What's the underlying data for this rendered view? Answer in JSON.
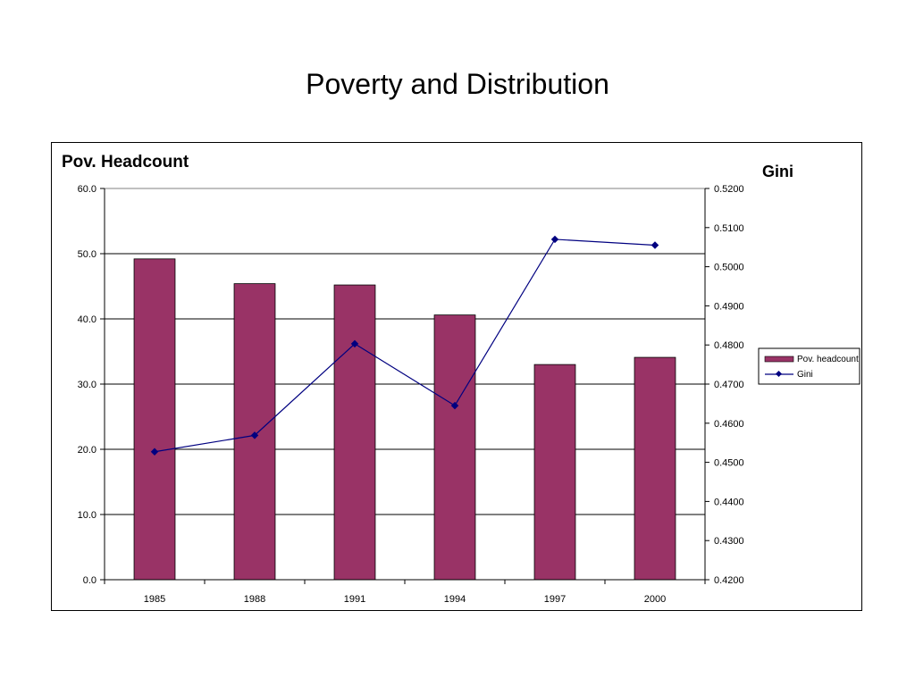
{
  "slide": {
    "title": "Poverty and Distribution"
  },
  "chart_data": {
    "type": "bar",
    "categories": [
      "1985",
      "1988",
      "1991",
      "1994",
      "1997",
      "2000"
    ],
    "series": [
      {
        "name": "Pov. headcount",
        "type": "bar",
        "axis": "left",
        "color": "#993366",
        "values": [
          49.2,
          45.4,
          45.2,
          40.6,
          33.0,
          34.1
        ]
      },
      {
        "name": "Gini",
        "type": "line",
        "axis": "right",
        "color": "#000080",
        "values": [
          0.4527,
          0.4569,
          0.4803,
          0.4645,
          0.507,
          0.5055
        ]
      }
    ],
    "left_axis": {
      "label": "Pov. Headcount",
      "ylim": [
        0,
        60
      ],
      "ticks": [
        "0.0",
        "10.0",
        "20.0",
        "30.0",
        "40.0",
        "50.0",
        "60.0"
      ]
    },
    "right_axis": {
      "label": "Gini",
      "ylim": [
        0.42,
        0.52
      ],
      "ticks": [
        "0.4200",
        "0.4300",
        "0.4400",
        "0.4500",
        "0.4600",
        "0.4700",
        "0.4800",
        "0.4900",
        "0.5000",
        "0.5100",
        "0.5200"
      ]
    },
    "grid": true,
    "legend_position": "right"
  }
}
